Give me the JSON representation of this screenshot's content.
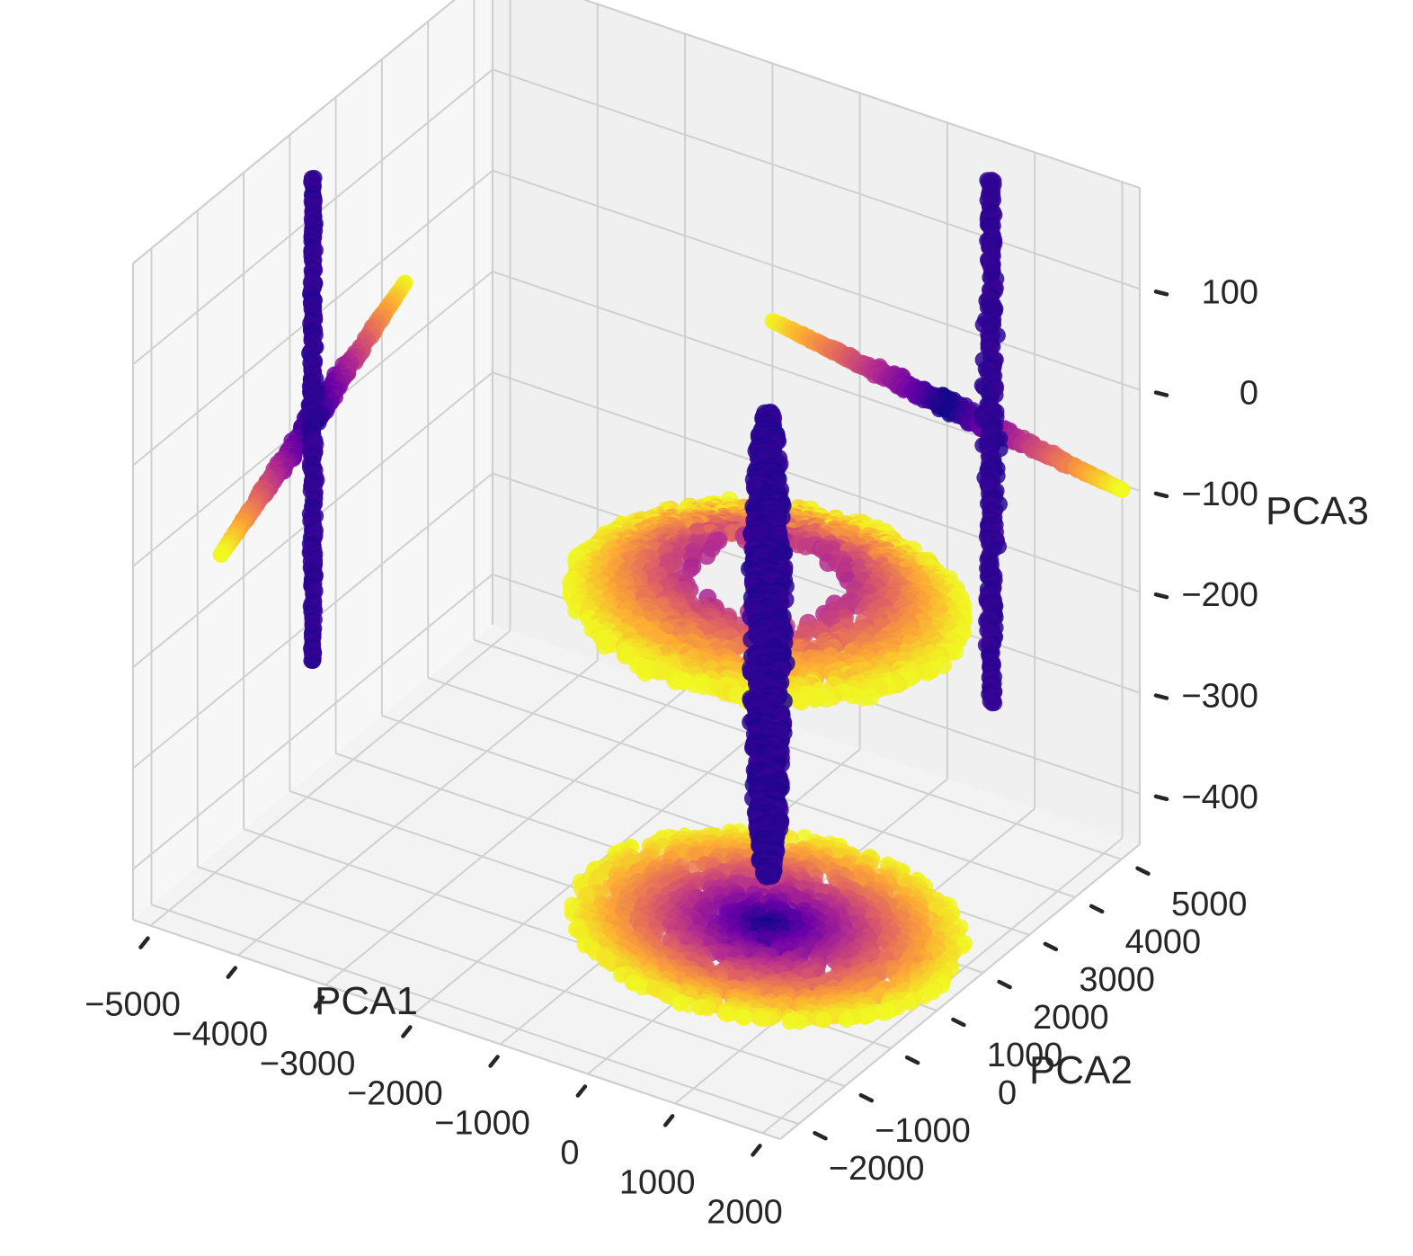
{
  "chart_data": {
    "type": "scatter",
    "projection": "3d",
    "title": "",
    "colormap": "plasma",
    "xlabel": "PCA1",
    "ylabel": "PCA2",
    "zlabel": "PCA3",
    "xlim": [
      -5200,
      2200
    ],
    "ylim": [
      -2400,
      5400
    ],
    "zlim": [
      -450,
      200
    ],
    "xticks": [
      -5000,
      -4000,
      -3000,
      -2000,
      -1000,
      0,
      1000,
      2000
    ],
    "yticks": [
      -2000,
      -1000,
      0,
      1000,
      2000,
      3000,
      4000,
      5000
    ],
    "zticks": [
      -400,
      -300,
      -200,
      -100,
      0,
      100
    ],
    "xtick_labels": [
      "−5000",
      "−4000",
      "−3000",
      "−2000",
      "−1000",
      "0",
      "1000",
      "2000"
    ],
    "ytick_labels": [
      "−2000",
      "−1000",
      "0",
      "1000",
      "2000",
      "3000",
      "4000",
      "5000"
    ],
    "ztick_labels": [
      "−400",
      "−300",
      "−200",
      "−100",
      "0",
      "100"
    ],
    "grid": true,
    "series": [
      {
        "shape": "disc with central spike",
        "center": [
          0,
          1500,
          -100
        ],
        "disc_radius": 2000,
        "spike_z_range": [
          -400,
          60
        ],
        "colors": [
          "#0d0887",
          "#6a00a8",
          "#b12a90",
          "#e16462",
          "#fca636",
          "#f0f921"
        ]
      },
      {
        "shape": "flat projection on floor (z = -450)",
        "center": [
          0,
          1500
        ],
        "disc_radius": 2000
      },
      {
        "shape": "cross projection on back wall (PCA2 = 5400)",
        "x_range": [
          -2000,
          2000
        ],
        "z_range": [
          -350,
          150
        ]
      },
      {
        "shape": "cross projection on side wall (PCA1 = -5200)",
        "y_range": [
          -500,
          3500
        ],
        "z_range": [
          -350,
          150
        ]
      }
    ]
  }
}
